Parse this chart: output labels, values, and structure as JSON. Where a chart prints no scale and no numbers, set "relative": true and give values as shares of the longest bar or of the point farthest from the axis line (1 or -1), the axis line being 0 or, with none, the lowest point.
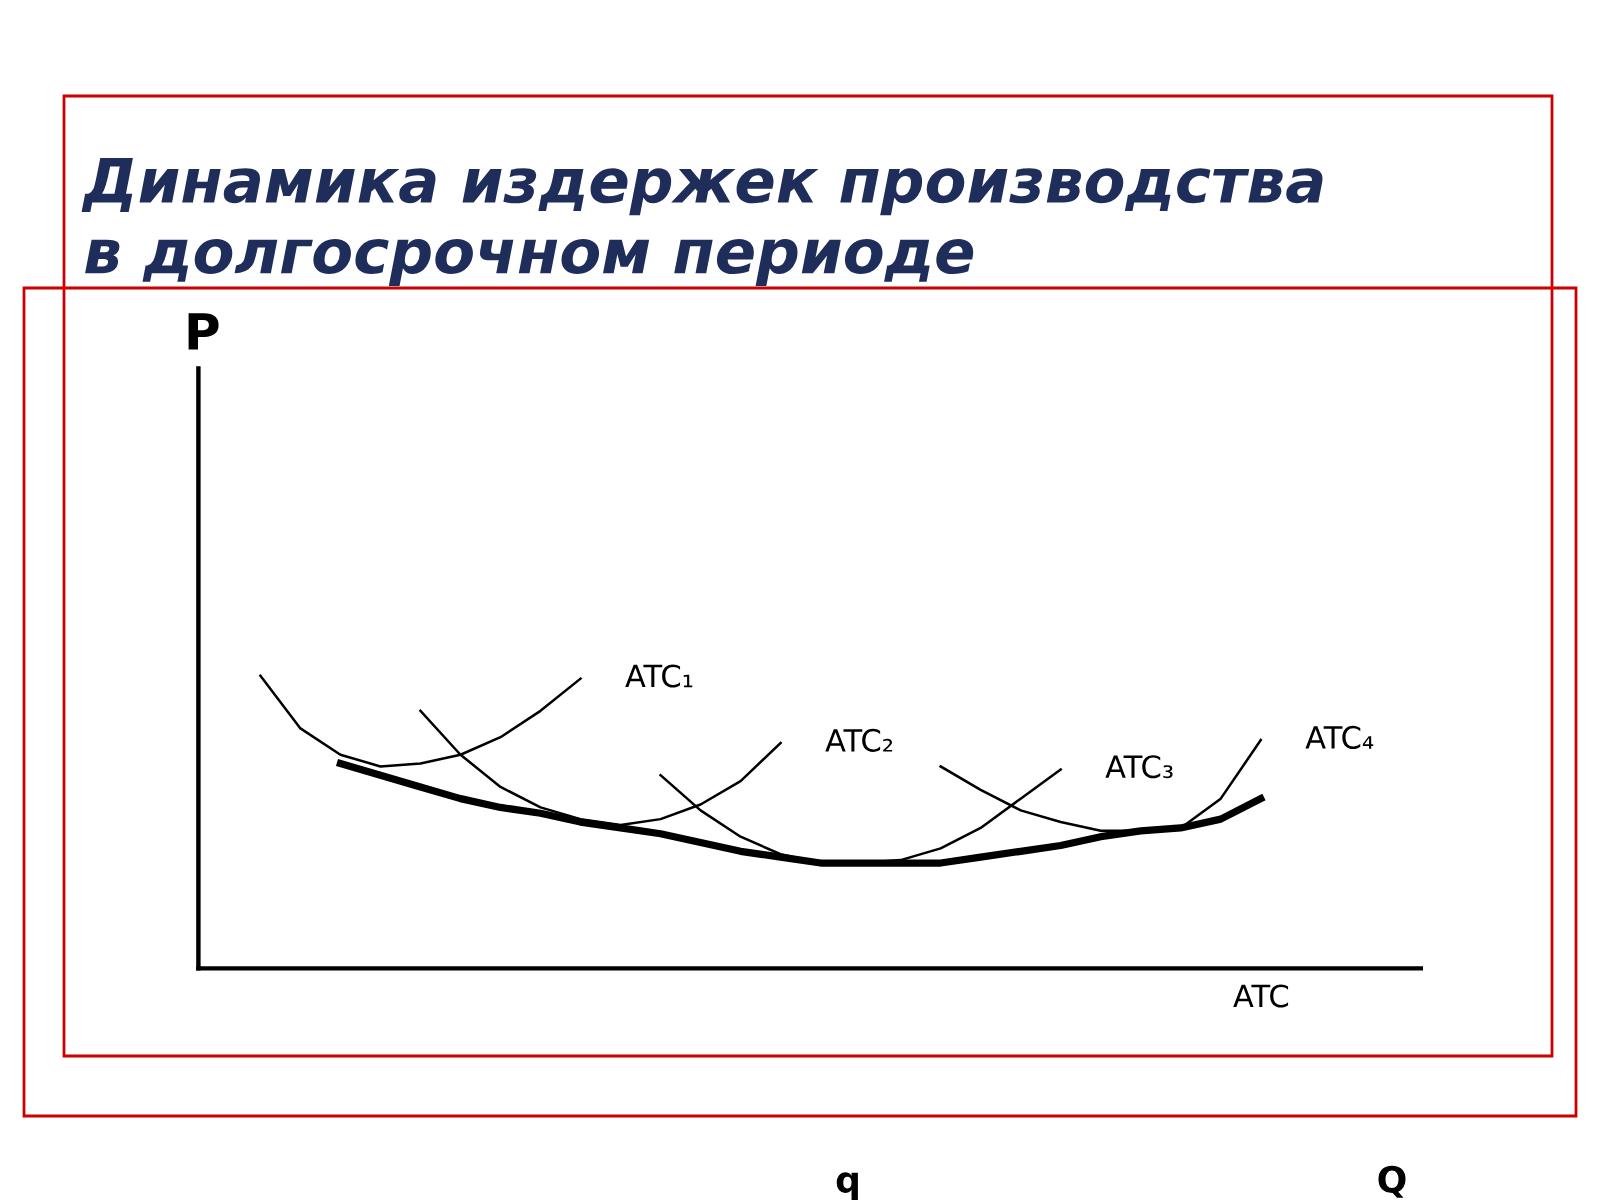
{
  "chart_data": {
    "type": "line",
    "relative": true,
    "title": "Динамика издержек производства\nв долгосрочном периоде",
    "annotations": [
      "P",
      "q",
      "Q"
    ],
    "legend": false,
    "marker": "none",
    "line_style": "solid",
    "categories": [
      null,
      null,
      null,
      null,
      null,
      null,
      null,
      null,
      null,
      null,
      null,
      null,
      null,
      null,
      null,
      null,
      null,
      null,
      null,
      null,
      null,
      null,
      null,
      null,
      null,
      null
    ],
    "series": [
      {
        "name": "ATC₁",
        "color": "#000000",
        "values": [
          1.0,
          0.82,
          0.73,
          0.69,
          0.7,
          0.73,
          0.79,
          0.88,
          0.99,
          null,
          null,
          null,
          null,
          null,
          null,
          null,
          null,
          null,
          null,
          null,
          null,
          null,
          null,
          null,
          null,
          null
        ]
      },
      {
        "name": "ATC₂",
        "color": "#000000",
        "values": [
          null,
          null,
          null,
          null,
          0.88,
          0.73,
          0.62,
          0.55,
          0.51,
          0.49,
          0.51,
          0.56,
          0.64,
          0.77,
          null,
          null,
          null,
          null,
          null,
          null,
          null,
          null,
          null,
          null,
          null,
          null
        ]
      },
      {
        "name": "ATC₃",
        "color": "#000000",
        "values": [
          null,
          null,
          null,
          null,
          null,
          null,
          null,
          null,
          null,
          null,
          0.66,
          0.54,
          0.45,
          0.39,
          0.36,
          0.36,
          0.37,
          0.41,
          0.48,
          0.58,
          0.68,
          null,
          null,
          null,
          null,
          null
        ]
      },
      {
        "name": "ATC₄",
        "color": "#000000",
        "values": [
          null,
          null,
          null,
          null,
          null,
          null,
          null,
          null,
          null,
          null,
          null,
          null,
          null,
          null,
          null,
          null,
          null,
          0.69,
          0.61,
          0.54,
          0.5,
          0.47,
          0.47,
          0.48,
          0.58,
          0.78
        ]
      },
      {
        "name": "ATC",
        "color": "#000000",
        "values": [
          null,
          null,
          0.7,
          0.66,
          0.62,
          0.58,
          0.55,
          0.53,
          0.5,
          0.48,
          0.46,
          0.43,
          0.4,
          0.38,
          0.36,
          0.36,
          0.36,
          0.36,
          0.38,
          0.4,
          0.42,
          0.45,
          0.47,
          0.48,
          0.51,
          0.58
        ]
      }
    ]
  }
}
